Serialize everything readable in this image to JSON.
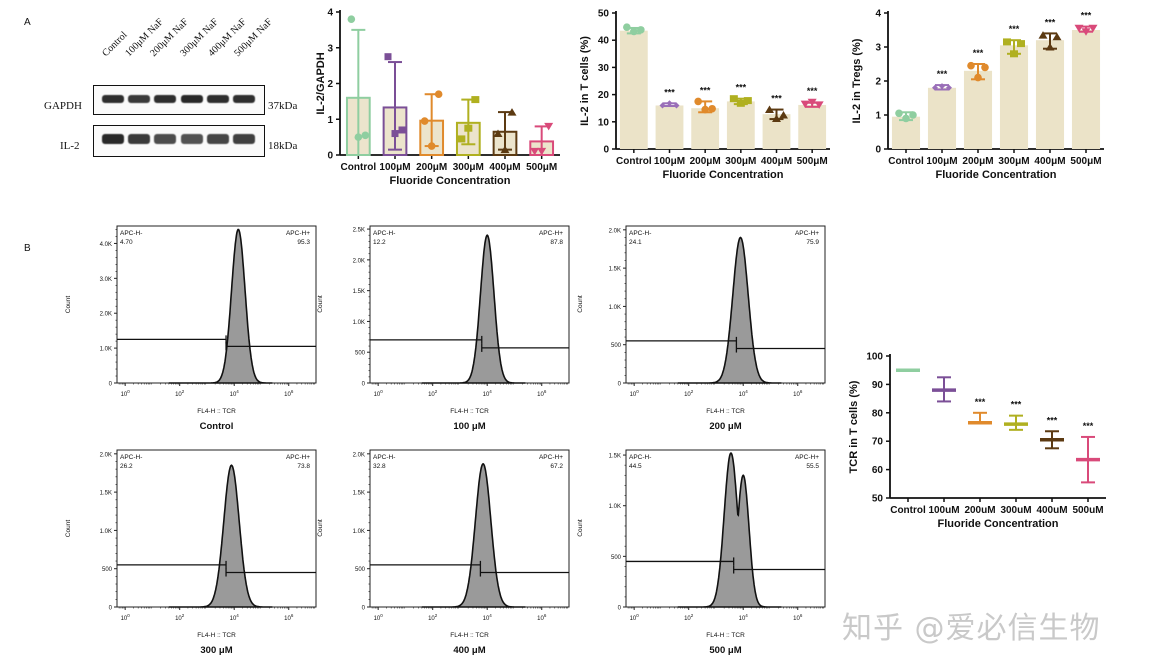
{
  "panel_labels": {
    "a": "A",
    "b": "B"
  },
  "western_blot": {
    "lanes": [
      "Control",
      "100μM NaF",
      "200μM NaF",
      "300μM NaF",
      "400μM NaF",
      "500μM NaF"
    ],
    "rows": [
      {
        "label": "GAPDH",
        "size": "37kDa",
        "intensity": [
          0.95,
          0.85,
          0.95,
          1.0,
          0.95,
          0.95
        ]
      },
      {
        "label": "IL-2",
        "size": "18kDa",
        "intensity": [
          1.0,
          0.85,
          0.7,
          0.65,
          0.75,
          0.8
        ]
      }
    ]
  },
  "chart_data": [
    {
      "id": "il2-gapdh",
      "type": "bar",
      "title": "",
      "xlabel": "Fluoride Concentration",
      "ylabel": "IL-2/GAPDH",
      "categories": [
        "Control",
        "100μM",
        "200μM",
        "300μM",
        "400μM",
        "500μM"
      ],
      "values": [
        1.6,
        1.33,
        0.96,
        0.9,
        0.65,
        0.38
      ],
      "error_upper": [
        3.5,
        2.6,
        1.7,
        1.55,
        1.2,
        0.8
      ],
      "error_lower": [
        0.0,
        0.15,
        0.25,
        0.3,
        0.15,
        0.0
      ],
      "points": [
        [
          3.8,
          0.5,
          0.55
        ],
        [
          2.75,
          0.6,
          0.7
        ],
        [
          0.95,
          0.25,
          1.7
        ],
        [
          0.45,
          0.75,
          1.55
        ],
        [
          0.6,
          0.15,
          1.2
        ],
        [
          0.1,
          0.1,
          0.8
        ]
      ],
      "yticks": [
        0,
        1,
        2,
        3,
        4
      ],
      "ylim": [
        0,
        4
      ],
      "significance": [
        "",
        "",
        "",
        "",
        "",
        ""
      ],
      "bar_style": "outlined",
      "colors": [
        "#8fcea0",
        "#7b4f97",
        "#e08a2c",
        "#b0b020",
        "#5c3a12",
        "#d94a7a"
      ]
    },
    {
      "id": "il2-tcells",
      "type": "bar",
      "title": "",
      "xlabel": "Fluoride Concentration",
      "ylabel": "IL-2 in T cells (%)",
      "categories": [
        "Control",
        "100μM",
        "200μM",
        "300μM",
        "400μM",
        "500μM"
      ],
      "values": [
        43.5,
        16.0,
        15.0,
        17.5,
        12.8,
        16.2
      ],
      "error_upper": [
        44.5,
        16.8,
        17.5,
        18.5,
        14.5,
        17.0
      ],
      "error_lower": [
        42.5,
        15.8,
        13.5,
        16.5,
        11.0,
        15.5
      ],
      "points": [
        [
          44.8,
          43.2,
          43.8
        ],
        [
          16.0,
          16.8,
          16.0
        ],
        [
          17.5,
          14.5,
          14.8
        ],
        [
          18.5,
          16.8,
          17.8
        ],
        [
          14.5,
          11.2,
          12.5
        ],
        [
          16.5,
          17.2,
          16.2
        ]
      ],
      "yticks": [
        0,
        10,
        20,
        30,
        40,
        50
      ],
      "ylim": [
        0,
        50
      ],
      "significance": [
        "",
        "***",
        "***",
        "***",
        "***",
        "***"
      ],
      "bar_style": "filled",
      "colors": [
        "#8fcea0",
        "#9a6fb8",
        "#e08a2c",
        "#b0b020",
        "#5c3a12",
        "#d94a7a"
      ]
    },
    {
      "id": "il2-tregs",
      "type": "bar",
      "title": "",
      "xlabel": "Fluoride Concentration",
      "ylabel": "IL-2 in Tregs (%)",
      "categories": [
        "Control",
        "100μM",
        "200μM",
        "300μM",
        "400μM",
        "500μM"
      ],
      "values": [
        0.95,
        1.8,
        2.3,
        3.05,
        3.2,
        3.5
      ],
      "error_upper": [
        1.08,
        1.88,
        2.5,
        3.2,
        3.4,
        3.6
      ],
      "error_lower": [
        0.85,
        1.75,
        2.05,
        2.8,
        2.95,
        3.45
      ],
      "points": [
        [
          1.05,
          0.9,
          1.0
        ],
        [
          1.8,
          1.85,
          1.8
        ],
        [
          2.45,
          2.1,
          2.4
        ],
        [
          3.15,
          2.8,
          3.1
        ],
        [
          3.35,
          3.0,
          3.3
        ],
        [
          3.55,
          3.45,
          3.55
        ]
      ],
      "yticks": [
        0,
        1,
        2,
        3,
        4
      ],
      "ylim": [
        0,
        4
      ],
      "significance": [
        "",
        "***",
        "***",
        "***",
        "***",
        "***"
      ],
      "bar_style": "filled",
      "colors": [
        "#8fcea0",
        "#9a6fb8",
        "#e08a2c",
        "#b0b020",
        "#5c3a12",
        "#d94a7a"
      ]
    },
    {
      "id": "tcr-tcells",
      "type": "scatter",
      "title": "",
      "xlabel": "Fluoride Concentration",
      "ylabel": "TCR in T cells (%)",
      "categories": [
        "Control",
        "100uM",
        "200uM",
        "300uM",
        "400uM",
        "500uM"
      ],
      "values": [
        95.0,
        88.0,
        76.5,
        76.0,
        70.5,
        63.5
      ],
      "error_upper": [
        95.0,
        92.5,
        80.0,
        79.0,
        73.5,
        71.5
      ],
      "error_lower": [
        95.0,
        84.0,
        76.5,
        74.0,
        67.5,
        55.5
      ],
      "yticks": [
        50,
        60,
        70,
        80,
        90,
        100
      ],
      "ylim": [
        50,
        100
      ],
      "significance": [
        "",
        "",
        "***",
        "***",
        "***",
        "***"
      ],
      "colors": [
        "#8fcea0",
        "#7b4f97",
        "#e08a2c",
        "#b0b020",
        "#5c3a12",
        "#d94a7a"
      ]
    }
  ],
  "flow_histograms": [
    {
      "title": "Control",
      "neg_label": "APC-H-",
      "neg_value": "4.70",
      "pos_label": "APC-H+",
      "pos_value": "95.3",
      "y_ticks": [
        "0",
        "1.0K",
        "2.0K",
        "3.0K",
        "4.0K"
      ],
      "y_max": 4500,
      "peak_count": 4400,
      "peak_log": 4.15,
      "width_log": 0.35,
      "gate_neg": 1250,
      "gate_pos": 1050,
      "gate_split_log": 3.7,
      "shoulder": 0
    },
    {
      "title": "100 μM",
      "neg_label": "APC-H-",
      "neg_value": "12.2",
      "pos_label": "APC-H+",
      "pos_value": "87.8",
      "y_ticks": [
        "0",
        "500",
        "1.0K",
        "1.5K",
        "2.0K",
        "2.5K"
      ],
      "y_max": 2550,
      "peak_count": 2400,
      "peak_log": 4.0,
      "width_log": 0.35,
      "gate_neg": 700,
      "gate_pos": 570,
      "gate_split_log": 3.8,
      "shoulder": 0
    },
    {
      "title": "200 μM",
      "neg_label": "APC-H-",
      "neg_value": "24.1",
      "pos_label": "APC-H+",
      "pos_value": "75.9",
      "y_ticks": [
        "0",
        "500",
        "1.0K",
        "1.5K",
        "2.0K"
      ],
      "y_max": 2050,
      "peak_count": 1900,
      "peak_log": 3.9,
      "width_log": 0.4,
      "gate_neg": 550,
      "gate_pos": 450,
      "gate_split_log": 3.75,
      "shoulder": 0
    },
    {
      "title": "300 μM",
      "neg_label": "APC-H-",
      "neg_value": "26.2",
      "pos_label": "APC-H+",
      "pos_value": "73.8",
      "y_ticks": [
        "0",
        "500",
        "1.0K",
        "1.5K",
        "2.0K"
      ],
      "y_max": 2050,
      "peak_count": 1850,
      "peak_log": 3.9,
      "width_log": 0.4,
      "gate_neg": 550,
      "gate_pos": 450,
      "gate_split_log": 3.7,
      "shoulder": 0
    },
    {
      "title": "400 μM",
      "neg_label": "APC-H-",
      "neg_value": "32.8",
      "pos_label": "APC-H+",
      "pos_value": "67.2",
      "y_ticks": [
        "0",
        "500",
        "1.0K",
        "1.5K",
        "2.0K"
      ],
      "y_max": 2050,
      "peak_count": 1870,
      "peak_log": 3.85,
      "width_log": 0.4,
      "gate_neg": 550,
      "gate_pos": 450,
      "gate_split_log": 3.75,
      "shoulder": 0
    },
    {
      "title": "500 μM",
      "neg_label": "APC-H-",
      "neg_value": "44.5",
      "pos_label": "APC-H+",
      "pos_value": "55.5",
      "y_ticks": [
        "0",
        "500",
        "1.0K",
        "1.5K"
      ],
      "y_max": 1550,
      "peak_count": 1520,
      "peak_log": 3.55,
      "width_log": 0.35,
      "gate_neg": 450,
      "gate_pos": 370,
      "gate_split_log": 3.65,
      "shoulder": 1300
    }
  ],
  "flow_common": {
    "ylabel": "Count",
    "xlabel": "FL4-H :: TCR",
    "x_ticks": [
      "10^0",
      "10^2",
      "10^4",
      "10^6"
    ]
  },
  "watermark": "知乎 @爱必信生物"
}
